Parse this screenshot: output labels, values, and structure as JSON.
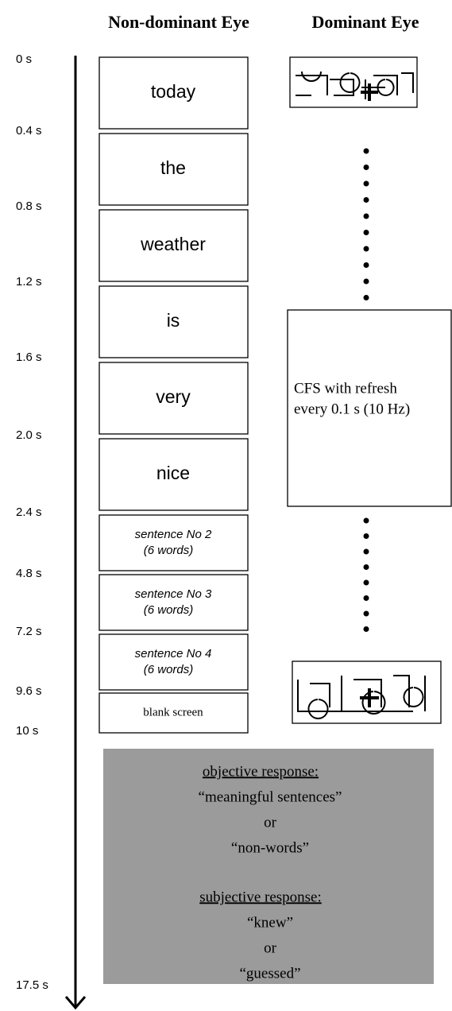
{
  "header": {
    "left": "Non-dominant Eye",
    "right": "Dominant Eye"
  },
  "timeline": [
    "0 s",
    "0.4 s",
    "0.8 s",
    "1.2 s",
    "1.6 s",
    "2.0 s",
    "2.4 s",
    "4.8 s",
    "7.2 s",
    "9.6 s",
    "10 s",
    "17.5 s"
  ],
  "non_dominant": [
    [
      "today"
    ],
    [
      "the"
    ],
    [
      "weather"
    ],
    [
      "is"
    ],
    [
      "very"
    ],
    [
      "nice"
    ],
    [
      "sentence No 2",
      "(6 words)"
    ],
    [
      "sentence No 3",
      "(6 words)"
    ],
    [
      "sentence No 4",
      "(6 words)"
    ],
    [
      "blank screen"
    ]
  ],
  "dominant": {
    "cfs": [
      "CFS with refresh",
      "every 0.1 s (10 Hz)"
    ]
  },
  "response": {
    "objective": {
      "heading": "objective response:",
      "lines": [
        "“meaningful sentences”",
        "or",
        "“non-words”"
      ]
    },
    "subjective": {
      "heading": "subjective response:",
      "lines": [
        "“knew”",
        "or",
        "“guessed”"
      ]
    }
  }
}
